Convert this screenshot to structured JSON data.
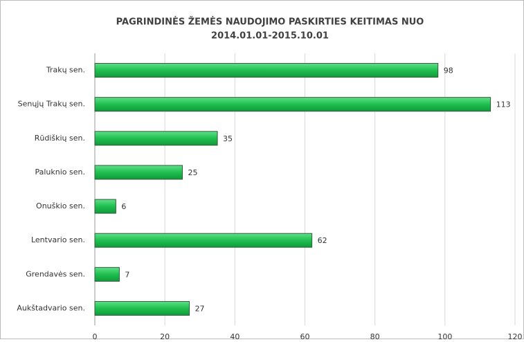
{
  "chart_data": {
    "type": "bar",
    "orientation": "horizontal",
    "title": [
      "PAGRINDINĖS ŽEMĖS NAUDOJIMO PASKIRTIES KEITIMAS NUO",
      "2014.01.01-2015.10.01"
    ],
    "categories": [
      "Trakų sen.",
      "Senųjų Trakų sen.",
      "Rūdiškių sen.",
      "Paluknio sen.",
      "Onuškio sen.",
      "Lentvario sen.",
      "Grendavės sen.",
      "Aukštadvario sen."
    ],
    "values": [
      98,
      113,
      35,
      25,
      6,
      62,
      7,
      27
    ],
    "color": "#1fbf4f",
    "xlim": [
      0,
      120
    ],
    "xticks": [
      0,
      20,
      40,
      60,
      80,
      100,
      120
    ],
    "grid": true
  }
}
